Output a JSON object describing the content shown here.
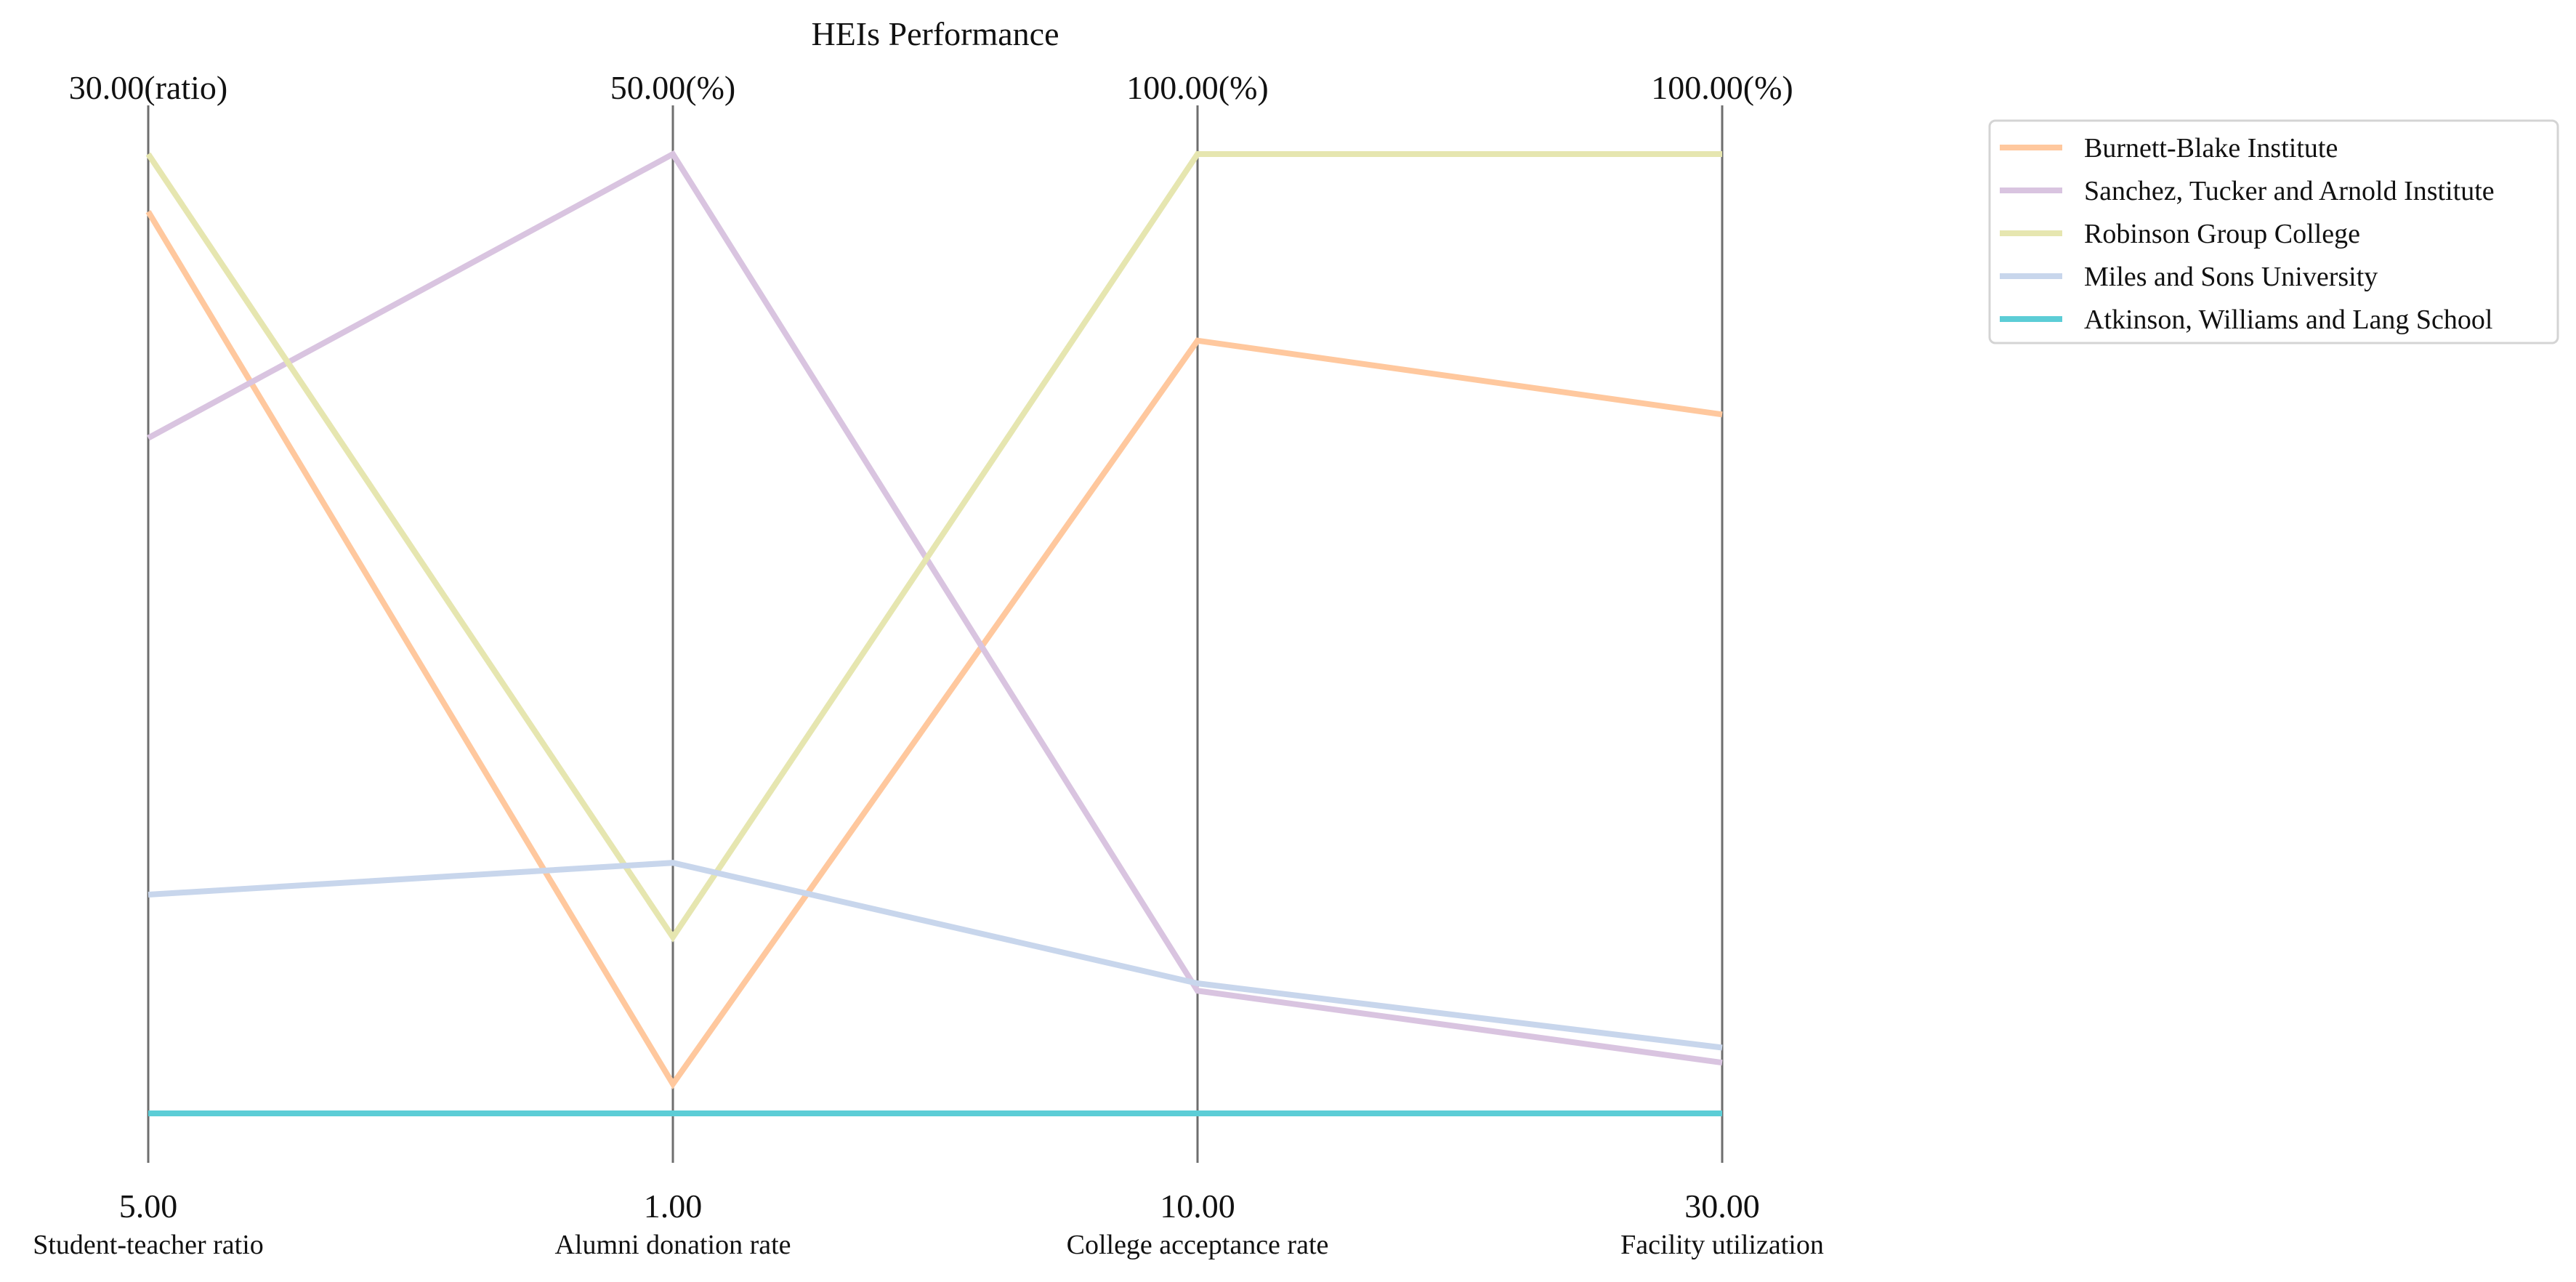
{
  "chart_data": {
    "type": "parallel-coordinates",
    "title": "HEIs Performance",
    "axes": [
      {
        "name": "Student-teacher ratio",
        "min": 5,
        "max": 30,
        "min_label": "5.00",
        "max_label": "30.00(ratio)"
      },
      {
        "name": "Alumni donation rate",
        "min": 1,
        "max": 50,
        "min_label": "1.00",
        "max_label": "50.00(%)"
      },
      {
        "name": "College acceptance rate",
        "min": 10,
        "max": 100,
        "min_label": "10.00",
        "max_label": "100.00(%)"
      },
      {
        "name": "Facility utilization",
        "min": 30,
        "max": 100,
        "min_label": "30.00",
        "max_label": "100.00(%)"
      }
    ],
    "series": [
      {
        "name": "Burnett-Blake  Institute",
        "color": "#ffc89e",
        "values": [
          28.5,
          2.5,
          82.5,
          81.0
        ]
      },
      {
        "name": "Sanchez, Tucker and Arnold  Institute",
        "color": "#d9c4e0",
        "values": [
          22.6,
          50.0,
          21.5,
          33.7
        ]
      },
      {
        "name": "Robinson Group  College",
        "color": "#e6e6b0",
        "values": [
          30.0,
          10.0,
          100.0,
          100.0
        ]
      },
      {
        "name": "Miles and Sons  University",
        "color": "#c8d6ec",
        "values": [
          10.7,
          13.8,
          22.2,
          34.8
        ]
      },
      {
        "name": "Atkinson, Williams and Lang  School",
        "color": "#5ccdd6",
        "values": [
          5.0,
          1.0,
          10.0,
          30.0
        ]
      }
    ],
    "legend_position": "top-right",
    "grid": false
  }
}
